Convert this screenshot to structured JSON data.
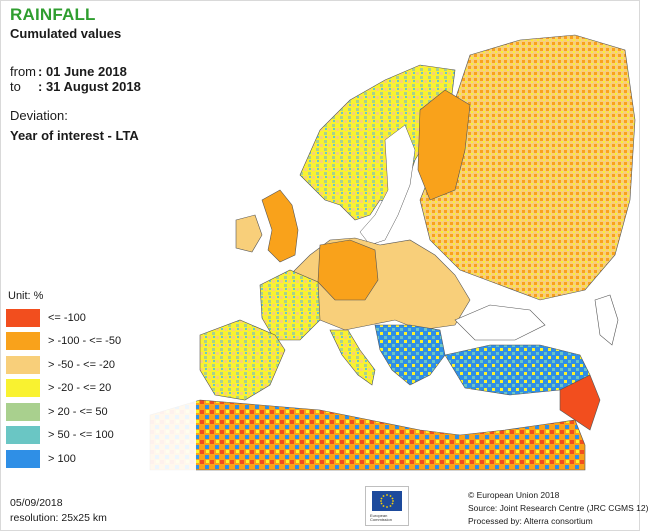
{
  "header": {
    "title": "RAINFALL",
    "subtitle": "Cumulated values",
    "from_label": "from",
    "from_value": ": 01 June 2018",
    "to_label": "to",
    "to_value": ": 31 August 2018",
    "deviation_label": "Deviation:",
    "deviation_value": "Year of interest - LTA"
  },
  "legend": {
    "unit": "Unit:  %",
    "items": [
      {
        "label": "<= -100",
        "color": "#f24e1e"
      },
      {
        "label": "> -100 - <= -50",
        "color": "#f9a21b"
      },
      {
        "label": "> -50 - <= -20",
        "color": "#f8cf7a"
      },
      {
        "label": "> -20 - <= 20",
        "color": "#f9f230"
      },
      {
        "label": "> 20 - <= 50",
        "color": "#a9d08e"
      },
      {
        "label": "> 50 - <= 100",
        "color": "#6ac6c4"
      },
      {
        "label": "> 100",
        "color": "#2f8fe6"
      }
    ]
  },
  "footer": {
    "date": "05/09/2018",
    "resolution": "resolution: 25x25 km",
    "eu_logo_text": "European Commission",
    "copyright": "© European Union 2018",
    "source": "Source: Joint Research Centre (JRC CGMS 12)",
    "processed": "Processed by: Alterra consortium"
  },
  "colors": {
    "sea": "#ffffff",
    "border": "#333333",
    "title_green": "#2f9e2f",
    "no_data": "#e8e8e8"
  },
  "map": {
    "region": "Europe, North Africa and Middle East",
    "variable": "Rainfall deviation"
  }
}
